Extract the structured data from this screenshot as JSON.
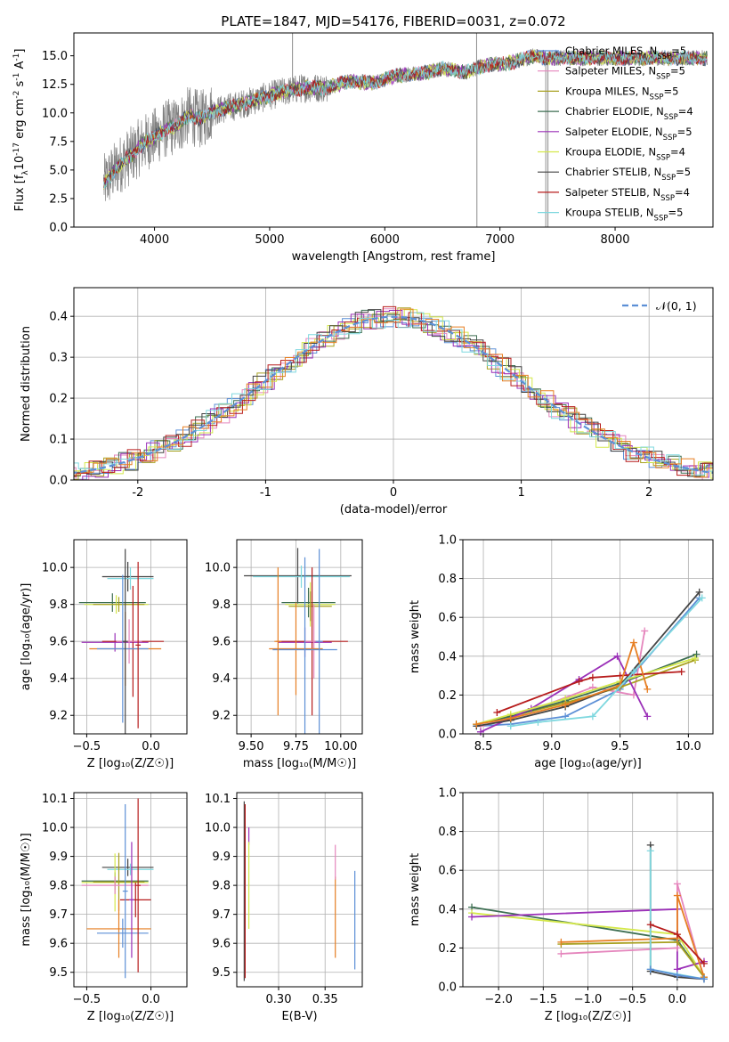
{
  "title": "PLATE=1847, MJD=54176, FIBERID=0031, z=0.072",
  "chart_data": [
    {
      "id": "spectrum",
      "type": "line",
      "xlabel": "wavelength [Angstrom, rest frame]",
      "ylabel_parts": [
        "Flux [f",
        "λ",
        "10",
        "-17",
        " erg cm",
        "-2",
        " s",
        "-1",
        " A",
        "-1",
        "]"
      ],
      "xlim": [
        3300,
        8850
      ],
      "ylim": [
        0,
        17
      ],
      "xticks": [
        4000,
        5000,
        6000,
        7000,
        8000
      ],
      "yticks": [
        0,
        2.5,
        5,
        7.5,
        10,
        12.5,
        15
      ],
      "ytick_labels": [
        "0.0",
        "2.5",
        "5.0",
        "7.5",
        "10.0",
        "12.5",
        "15.0"
      ],
      "grid": false,
      "legend_position": "upper right",
      "legend": [
        {
          "name": "Chabrier MILES",
          "nssp": "5",
          "color": "#5c8fd6"
        },
        {
          "name": "Salpeter MILES",
          "nssp": "5",
          "color": "#e586bd"
        },
        {
          "name": "Kroupa MILES",
          "nssp": "5",
          "color": "#a8a020"
        },
        {
          "name": "Chabrier ELODIE",
          "nssp": "4",
          "color": "#3d6e52"
        },
        {
          "name": "Salpeter ELODIE",
          "nssp": "5",
          "color": "#9b30b8"
        },
        {
          "name": "Kroupa ELODIE",
          "nssp": "4",
          "color": "#d4e84a"
        },
        {
          "name": "Chabrier STELIB",
          "nssp": "5",
          "color": "#444444"
        },
        {
          "name": "Salpeter STELIB",
          "nssp": "4",
          "color": "#b71c1c"
        },
        {
          "name": "Kroupa STELIB",
          "nssp": "5",
          "color": "#7fd8df"
        }
      ],
      "continuum": {
        "x": [
          3560,
          3700,
          3800,
          3900,
          4000,
          4100,
          4200,
          4300,
          4400,
          4500,
          4700,
          4900,
          5100,
          5300,
          5500,
          5700,
          5900,
          6100,
          6300,
          6500,
          6700,
          6900,
          7100,
          7300,
          7400
        ],
        "y": [
          3.8,
          5.5,
          6.3,
          7.3,
          7.9,
          8.6,
          8.9,
          9.8,
          9.4,
          10.1,
          10.6,
          11.2,
          11.8,
          12.2,
          12.2,
          12.8,
          12.6,
          13.3,
          13.4,
          13.9,
          13.6,
          14.2,
          14.4,
          15.0,
          14.8
        ]
      },
      "model_x_range": [
        3560,
        8800
      ],
      "spikes": [
        {
          "x": 5199,
          "y": 17
        },
        {
          "x": 6797,
          "y": 17
        },
        {
          "x": 6800,
          "y": 0
        },
        {
          "x": 7398,
          "y": 0
        },
        {
          "x": 7417,
          "y": 0
        }
      ]
    },
    {
      "id": "residuals",
      "type": "histogram",
      "xlabel": "(data-model)/error",
      "ylabel": "Normed distribution",
      "xlim": [
        -2.5,
        2.5
      ],
      "ylim": [
        0,
        0.47
      ],
      "xticks": [
        -2,
        -1,
        0,
        1,
        2
      ],
      "yticks": [
        0,
        0.1,
        0.2,
        0.3,
        0.4
      ],
      "ytick_labels": [
        "0.0",
        "0.1",
        "0.2",
        "0.3",
        "0.4"
      ],
      "grid": true,
      "legend_position": "upper right",
      "legend_label": "𝒩(0, 1)",
      "gaussian_color": "#5c8fd6",
      "bin_width": 0.1
    },
    {
      "id": "age-vs-Z",
      "type": "errorbar",
      "xlabel": "Z [log₁₀(Z/Z☉)]",
      "ylabel": "age  [log₁₀(age/yr)]",
      "xlim": [
        -0.6,
        0.28
      ],
      "ylim": [
        9.1,
        10.15
      ],
      "xticks": [
        -0.5,
        0.0
      ],
      "xtick_labels": [
        "−0.5",
        "0.0"
      ],
      "yticks": [
        9.2,
        9.4,
        9.6,
        9.8,
        10.0
      ],
      "ytick_labels": [
        "9.2",
        "9.4",
        "9.6",
        "9.8",
        "10.0"
      ],
      "grid": true,
      "points": [
        {
          "x": -0.18,
          "y": 9.95,
          "xerr": 0.2,
          "yerr": 0.08,
          "color": "#444444"
        },
        {
          "x": -0.16,
          "y": 9.94,
          "xerr": 0.18,
          "yerr": 0.06,
          "color": "#7fd8df"
        },
        {
          "x": -0.3,
          "y": 9.81,
          "xerr": 0.26,
          "yerr": 0.05,
          "color": "#3d6e52"
        },
        {
          "x": -0.27,
          "y": 9.8,
          "xerr": 0.25,
          "yerr": 0.05,
          "color": "#d4e84a"
        },
        {
          "x": -0.25,
          "y": 9.8,
          "xerr": 0.2,
          "yerr": 0.04,
          "color": "#a8a020"
        },
        {
          "x": -0.28,
          "y": 9.595,
          "xerr": 0.26,
          "yerr": 0.05,
          "color": "#9b30b8"
        },
        {
          "x": -0.14,
          "y": 9.6,
          "xerr": 0.24,
          "yerr": 0.3,
          "color": "#b71c1c"
        },
        {
          "x": -0.17,
          "y": 9.6,
          "xerr": 0.1,
          "yerr": 0.12,
          "color": "#e586bd"
        },
        {
          "x": -0.2,
          "y": 9.56,
          "xerr": 0.28,
          "yerr": 0.2,
          "color": "#e67e22"
        },
        {
          "x": -0.22,
          "y": 9.56,
          "xerr": 0.2,
          "yerr": 0.4,
          "color": "#5c8fd6"
        },
        {
          "x": -0.2,
          "y": 9.6,
          "xerr": 0.02,
          "yerr": 0.5,
          "color": "#444444"
        },
        {
          "x": -0.1,
          "y": 9.58,
          "xerr": 0.02,
          "yerr": 0.45,
          "color": "#b71c1c"
        }
      ]
    },
    {
      "id": "age-vs-mass",
      "type": "errorbar",
      "xlabel": "mass [log₁₀(M/M☉)]",
      "xlim": [
        9.42,
        10.12
      ],
      "ylim": [
        9.1,
        10.15
      ],
      "xticks": [
        9.5,
        9.75,
        10.0
      ],
      "xtick_labels": [
        "9.50",
        "9.75",
        "10.00"
      ],
      "yticks": [
        9.2,
        9.4,
        9.6,
        9.8,
        10.0
      ],
      "ytick_labels": [
        "9.2",
        "9.4",
        "9.6",
        "9.8",
        "10.0"
      ],
      "grid": true,
      "points": [
        {
          "x": 9.76,
          "y": 9.955,
          "xerr": 0.3,
          "yerr": 0.15,
          "color": "#444444"
        },
        {
          "x": 9.78,
          "y": 9.95,
          "xerr": 0.27,
          "yerr": 0.06,
          "color": "#7fd8df"
        },
        {
          "x": 9.82,
          "y": 9.81,
          "xerr": 0.15,
          "yerr": 0.08,
          "color": "#3d6e52"
        },
        {
          "x": 9.83,
          "y": 9.8,
          "xerr": 0.14,
          "yerr": 0.12,
          "color": "#d4e84a"
        },
        {
          "x": 9.83,
          "y": 9.79,
          "xerr": 0.12,
          "yerr": 0.08,
          "color": "#a8a020"
        },
        {
          "x": 9.8,
          "y": 9.595,
          "xerr": 0.15,
          "yerr": 0.08,
          "color": "#9b30b8"
        },
        {
          "x": 9.84,
          "y": 9.6,
          "xerr": 0.2,
          "yerr": 0.4,
          "color": "#b71c1c"
        },
        {
          "x": 9.85,
          "y": 9.6,
          "xerr": 0.05,
          "yerr": 0.2,
          "color": "#e586bd"
        },
        {
          "x": 9.75,
          "y": 9.56,
          "xerr": 0.15,
          "yerr": 0.25,
          "color": "#e67e22"
        },
        {
          "x": 9.8,
          "y": 9.555,
          "xerr": 0.18,
          "yerr": 0.5,
          "color": "#5c8fd6"
        },
        {
          "x": 9.65,
          "y": 9.6,
          "xerr": 0.02,
          "yerr": 0.4,
          "color": "#e67e22"
        },
        {
          "x": 9.88,
          "y": 9.6,
          "xerr": 0.02,
          "yerr": 0.5,
          "color": "#5c8fd6"
        }
      ]
    },
    {
      "id": "weight-vs-age",
      "type": "line",
      "xlabel": "age  [log₁₀(age/yr)]",
      "ylabel": "mass weight",
      "xlim": [
        8.35,
        10.18
      ],
      "ylim": [
        0,
        1.0
      ],
      "xticks": [
        8.5,
        9.0,
        9.5,
        10.0
      ],
      "xtick_labels": [
        "8.5",
        "9.0",
        "9.5",
        "10.0"
      ],
      "yticks": [
        0,
        0.2,
        0.4,
        0.6,
        0.8,
        1.0
      ],
      "ytick_labels": [
        "0.0",
        "0.2",
        "0.4",
        "0.6",
        "0.8",
        "1.0"
      ],
      "grid": true,
      "series": [
        {
          "color": "#5c8fd6",
          "x": [
            8.45,
            8.7,
            9.1,
            9.5,
            10.08
          ],
          "y": [
            0.04,
            0.05,
            0.09,
            0.23,
            0.7
          ]
        },
        {
          "color": "#e586bd",
          "x": [
            8.48,
            8.7,
            9.3,
            9.6,
            9.68
          ],
          "y": [
            0.04,
            0.08,
            0.24,
            0.2,
            0.53
          ]
        },
        {
          "color": "#a8a020",
          "x": [
            8.45,
            8.7,
            9.1,
            9.5,
            10.05
          ],
          "y": [
            0.05,
            0.09,
            0.16,
            0.24,
            0.38
          ]
        },
        {
          "color": "#3d6e52",
          "x": [
            8.45,
            8.7,
            9.1,
            9.5,
            10.06
          ],
          "y": [
            0.05,
            0.09,
            0.17,
            0.26,
            0.41
          ]
        },
        {
          "color": "#9b30b8",
          "x": [
            8.48,
            8.85,
            9.2,
            9.48,
            9.7
          ],
          "y": [
            0.01,
            0.13,
            0.28,
            0.4,
            0.09
          ]
        },
        {
          "color": "#d4e84a",
          "x": [
            8.45,
            8.7,
            9.1,
            9.5,
            10.05
          ],
          "y": [
            0.05,
            0.1,
            0.18,
            0.27,
            0.39
          ]
        },
        {
          "color": "#444444",
          "x": [
            8.45,
            8.7,
            9.1,
            9.5,
            10.08
          ],
          "y": [
            0.04,
            0.07,
            0.14,
            0.25,
            0.73
          ]
        },
        {
          "color": "#b71c1c",
          "x": [
            8.6,
            9.2,
            9.3,
            9.5,
            9.95
          ],
          "y": [
            0.11,
            0.27,
            0.29,
            0.3,
            0.32
          ]
        },
        {
          "color": "#e67e22",
          "x": [
            8.45,
            8.7,
            9.1,
            9.5,
            9.6,
            9.7
          ],
          "y": [
            0.05,
            0.08,
            0.15,
            0.25,
            0.47,
            0.23
          ]
        },
        {
          "color": "#7fd8df",
          "x": [
            8.7,
            8.9,
            9.3,
            9.6,
            10.1
          ],
          "y": [
            0.04,
            0.06,
            0.09,
            0.32,
            0.7
          ]
        }
      ]
    },
    {
      "id": "mass-vs-Z",
      "type": "errorbar",
      "xlabel": "Z [log₁₀(Z/Z☉)]",
      "ylabel": "mass [log₁₀(M/M☉)]",
      "xlim": [
        -0.6,
        0.28
      ],
      "ylim": [
        9.45,
        10.12
      ],
      "xticks": [
        -0.5,
        0.0
      ],
      "xtick_labels": [
        "−0.5",
        "0.0"
      ],
      "yticks": [
        9.5,
        9.6,
        9.7,
        9.8,
        9.9,
        10.0,
        10.1
      ],
      "ytick_labels": [
        "9.5",
        "9.6",
        "9.7",
        "9.8",
        "9.9",
        "10.0",
        "10.1"
      ],
      "grid": true,
      "points": [
        {
          "x": -0.18,
          "y": 9.862,
          "xerr": 0.2,
          "yerr": 0.03,
          "color": "#444444"
        },
        {
          "x": -0.16,
          "y": 9.855,
          "xerr": 0.18,
          "yerr": 0.02,
          "color": "#7fd8df"
        },
        {
          "x": -0.28,
          "y": 9.815,
          "xerr": 0.26,
          "yerr": 0.03,
          "color": "#3d6e52"
        },
        {
          "x": -0.28,
          "y": 9.81,
          "xerr": 0.26,
          "yerr": 0.1,
          "color": "#d4e84a"
        },
        {
          "x": -0.25,
          "y": 9.812,
          "xerr": 0.2,
          "yerr": 0.1,
          "color": "#a8a020"
        },
        {
          "x": -0.28,
          "y": 9.8,
          "xerr": 0.26,
          "yerr": 0.03,
          "color": "#e586bd"
        },
        {
          "x": -0.12,
          "y": 9.75,
          "xerr": 0.12,
          "yerr": 0.06,
          "color": "#b71c1c"
        },
        {
          "x": -0.25,
          "y": 9.65,
          "xerr": 0.25,
          "yerr": 0.1,
          "color": "#e67e22"
        },
        {
          "x": -0.22,
          "y": 9.635,
          "xerr": 0.2,
          "yerr": 0.05,
          "color": "#5c8fd6"
        },
        {
          "x": -0.2,
          "y": 9.78,
          "xerr": 0.02,
          "yerr": 0.3,
          "color": "#5c8fd6"
        },
        {
          "x": -0.1,
          "y": 9.8,
          "xerr": 0.02,
          "yerr": 0.3,
          "color": "#b71c1c"
        },
        {
          "x": -0.15,
          "y": 9.75,
          "xerr": 0.02,
          "yerr": 0.2,
          "color": "#9b30b8"
        }
      ]
    },
    {
      "id": "mass-vs-ebv",
      "type": "errorbar",
      "xlabel": "E(B-V)",
      "xlim": [
        0.255,
        0.39
      ],
      "ylim": [
        9.45,
        10.12
      ],
      "xticks": [
        0.3,
        0.35
      ],
      "xtick_labels": [
        "0.30",
        "0.35"
      ],
      "yticks": [
        9.5,
        9.6,
        9.7,
        9.8,
        9.9,
        10.0,
        10.1
      ],
      "ytick_labels": [
        "9.5",
        "9.6",
        "9.7",
        "9.8",
        "9.9",
        "10.0",
        "10.1"
      ],
      "grid": true,
      "points": [
        {
          "x": 0.263,
          "y": 9.78,
          "xerr": 0,
          "yerr": 0.31,
          "color": "#444444"
        },
        {
          "x": 0.264,
          "y": 9.78,
          "xerr": 0,
          "yerr": 0.3,
          "color": "#b71c1c"
        },
        {
          "x": 0.268,
          "y": 9.97,
          "xerr": 0,
          "yerr": 0.03,
          "color": "#9b30b8"
        },
        {
          "x": 0.268,
          "y": 9.8,
          "xerr": 0,
          "yerr": 0.15,
          "color": "#d4e84a"
        },
        {
          "x": 0.361,
          "y": 9.69,
          "xerr": 0,
          "yerr": 0.14,
          "color": "#e67e22"
        },
        {
          "x": 0.361,
          "y": 9.88,
          "xerr": 0,
          "yerr": 0.06,
          "color": "#e586bd"
        },
        {
          "x": 0.382,
          "y": 9.68,
          "xerr": 0,
          "yerr": 0.17,
          "color": "#5c8fd6"
        }
      ]
    },
    {
      "id": "weight-vs-Z",
      "type": "line",
      "xlabel": "Z [log₁₀(Z/Z☉)]",
      "ylabel": "mass weight",
      "xlim": [
        -2.4,
        0.4
      ],
      "ylim": [
        0,
        1.0
      ],
      "xticks": [
        -2.0,
        -1.5,
        -1.0,
        -0.5,
        0.0
      ],
      "xtick_labels": [
        "−2.0",
        "−1.5",
        "−1.0",
        "−0.5",
        "0.0"
      ],
      "yticks": [
        0,
        0.2,
        0.4,
        0.6,
        0.8,
        1.0
      ],
      "ytick_labels": [
        "0.0",
        "0.2",
        "0.4",
        "0.6",
        "0.8",
        "1.0"
      ],
      "grid": true,
      "series": [
        {
          "color": "#3d6e52",
          "x": [
            -2.3,
            0.0,
            0.3
          ],
          "y": [
            0.41,
            0.24,
            0.05
          ]
        },
        {
          "color": "#d4e84a",
          "x": [
            -2.3,
            0.0,
            0.3
          ],
          "y": [
            0.38,
            0.27,
            0.05
          ]
        },
        {
          "color": "#9b30b8",
          "x": [
            -2.3,
            0.0,
            0.0,
            0.3
          ],
          "y": [
            0.36,
            0.4,
            0.09,
            0.13
          ]
        },
        {
          "color": "#e586bd",
          "x": [
            -1.3,
            0.0,
            0.0,
            0.3
          ],
          "y": [
            0.17,
            0.2,
            0.53,
            0.04
          ]
        },
        {
          "color": "#a8a020",
          "x": [
            -1.3,
            0.0,
            0.3
          ],
          "y": [
            0.22,
            0.23,
            0.05
          ]
        },
        {
          "color": "#e67e22",
          "x": [
            -1.3,
            0.0,
            0.0,
            0.3
          ],
          "y": [
            0.23,
            0.25,
            0.47,
            0.05
          ]
        },
        {
          "color": "#444444",
          "x": [
            -0.3,
            -0.3,
            0.0,
            0.3
          ],
          "y": [
            0.73,
            0.08,
            0.05,
            0.04
          ]
        },
        {
          "color": "#7fd8df",
          "x": [
            -0.3,
            -0.3,
            0.3
          ],
          "y": [
            0.7,
            0.09,
            0.04
          ]
        },
        {
          "color": "#5c8fd6",
          "x": [
            -0.3,
            0.0,
            0.3
          ],
          "y": [
            0.09,
            0.06,
            0.04
          ]
        },
        {
          "color": "#b71c1c",
          "x": [
            -0.3,
            0.0,
            0.3
          ],
          "y": [
            0.32,
            0.27,
            0.12
          ]
        }
      ]
    }
  ]
}
